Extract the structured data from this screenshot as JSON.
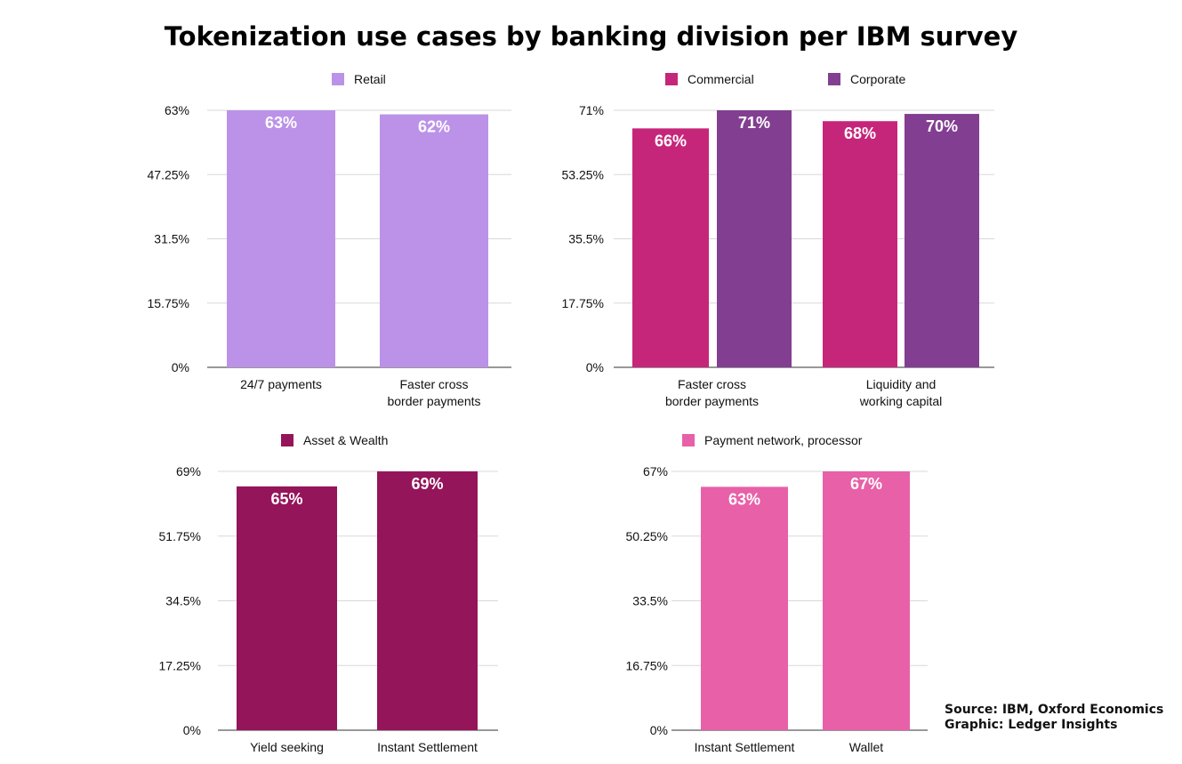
{
  "title": "Tokenization use cases by banking division per IBM survey",
  "source": "Source: IBM, Oxford Economics",
  "credit": "Graphic: Ledger Insights",
  "chart_data": [
    {
      "type": "bar",
      "categories": [
        "24/7 payments",
        "Faster cross\nborder payments"
      ],
      "series": [
        {
          "name": "Retail",
          "color": "#bb92e8",
          "values": [
            63,
            62
          ],
          "labels": [
            "63%",
            "62%"
          ]
        }
      ],
      "yticks": [
        "0%",
        "15.75%",
        "31.5%",
        "47.25%",
        "63%"
      ],
      "ylim": [
        0,
        63
      ],
      "grid": true,
      "legend": "top"
    },
    {
      "type": "bar",
      "categories": [
        "Faster cross\nborder payments",
        "Liquidity and\nworking capital"
      ],
      "series": [
        {
          "name": "Commercial",
          "color": "#c6267a",
          "values": [
            66,
            68
          ],
          "labels": [
            "66%",
            "68%"
          ]
        },
        {
          "name": "Corporate",
          "color": "#823e91",
          "values": [
            71,
            70
          ],
          "labels": [
            "71%",
            "70%"
          ]
        }
      ],
      "yticks": [
        "0%",
        "17.75%",
        "35.5%",
        "53.25%",
        "71%"
      ],
      "ylim": [
        0,
        71
      ],
      "grid": true,
      "legend": "top"
    },
    {
      "type": "bar",
      "categories": [
        "Yield seeking",
        "Instant Settlement"
      ],
      "series": [
        {
          "name": "Asset & Wealth",
          "color": "#95155a",
          "values": [
            65,
            69
          ],
          "labels": [
            "65%",
            "69%"
          ]
        }
      ],
      "yticks": [
        "0%",
        "17.25%",
        "34.5%",
        "51.75%",
        "69%"
      ],
      "ylim": [
        0,
        69
      ],
      "grid": true,
      "legend": "top"
    },
    {
      "type": "bar",
      "categories": [
        "Instant Settlement",
        "Wallet"
      ],
      "series": [
        {
          "name": "Payment network, processor",
          "color": "#e860a8",
          "values": [
            63,
            67
          ],
          "labels": [
            "63%",
            "67%"
          ]
        }
      ],
      "yticks": [
        "0%",
        "16.75%",
        "33.5%",
        "50.25%",
        "67%"
      ],
      "ylim": [
        0,
        67
      ],
      "grid": true,
      "legend": "top"
    }
  ]
}
